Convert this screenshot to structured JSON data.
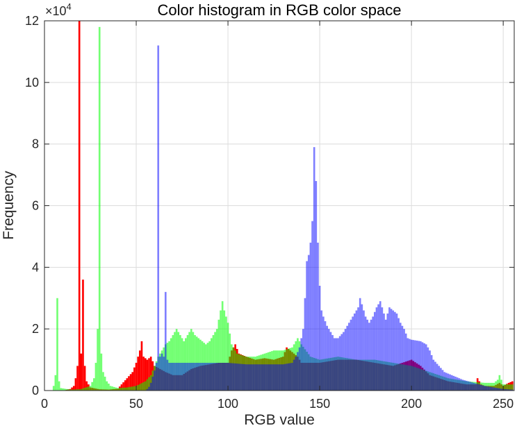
{
  "chart_data": {
    "type": "bar",
    "title": "Color histogram in RGB color space",
    "xlabel": "RGB value",
    "ylabel": "Frequency",
    "xlim": [
      0,
      256
    ],
    "ylim": [
      0,
      120000
    ],
    "y_exponent_label": "×10",
    "y_exponent_power": "4",
    "xticks": [
      0,
      50,
      100,
      150,
      200,
      250
    ],
    "xtick_labels": [
      "0",
      "50",
      "100",
      "150",
      "200",
      "250"
    ],
    "yticks": [
      0,
      20000,
      40000,
      60000,
      80000,
      100000,
      120000
    ],
    "ytick_labels": [
      "0",
      "2",
      "4",
      "6",
      "8",
      "10",
      "12"
    ],
    "grid": true,
    "series": [
      {
        "color": "#ff0000",
        "opacity": 1.0,
        "keypoints": [
          [
            0,
            0
          ],
          [
            10,
            0
          ],
          [
            14,
            500
          ],
          [
            16,
            1500
          ],
          [
            17,
            4000
          ],
          [
            18,
            8000
          ],
          [
            19,
            120000
          ],
          [
            20,
            12000
          ],
          [
            21,
            36000
          ],
          [
            22,
            8000
          ],
          [
            23,
            3000
          ],
          [
            25,
            1000
          ],
          [
            30,
            400
          ],
          [
            35,
            300
          ],
          [
            40,
            600
          ],
          [
            42,
            2000
          ],
          [
            45,
            4000
          ],
          [
            48,
            6000
          ],
          [
            50,
            9000
          ],
          [
            52,
            13000
          ],
          [
            53,
            16000
          ],
          [
            54,
            11000
          ],
          [
            56,
            10000
          ],
          [
            58,
            11000
          ],
          [
            60,
            8000
          ],
          [
            63,
            7000
          ],
          [
            66,
            6000
          ],
          [
            70,
            5000
          ],
          [
            75,
            5000
          ],
          [
            80,
            7000
          ],
          [
            85,
            8000
          ],
          [
            90,
            8500
          ],
          [
            95,
            9000
          ],
          [
            100,
            9000
          ],
          [
            102,
            13000
          ],
          [
            104,
            15000
          ],
          [
            106,
            12000
          ],
          [
            110,
            11000
          ],
          [
            115,
            10000
          ],
          [
            120,
            10500
          ],
          [
            125,
            10000
          ],
          [
            130,
            11000
          ],
          [
            132,
            14000
          ],
          [
            134,
            13000
          ],
          [
            136,
            12000
          ],
          [
            138,
            11000
          ],
          [
            140,
            9000
          ],
          [
            145,
            9000
          ],
          [
            150,
            9000
          ],
          [
            160,
            10000
          ],
          [
            170,
            10000
          ],
          [
            180,
            9000
          ],
          [
            190,
            8000
          ],
          [
            195,
            9000
          ],
          [
            200,
            10000
          ],
          [
            205,
            8000
          ],
          [
            210,
            5000
          ],
          [
            215,
            4000
          ],
          [
            220,
            3000
          ],
          [
            225,
            2500
          ],
          [
            230,
            2000
          ],
          [
            235,
            2000
          ],
          [
            236,
            4000
          ],
          [
            238,
            2000
          ],
          [
            240,
            1500
          ],
          [
            245,
            1500
          ],
          [
            248,
            2500
          ],
          [
            250,
            1500
          ],
          [
            253,
            2500
          ],
          [
            255,
            3000
          ]
        ]
      },
      {
        "color": "#00ff00",
        "opacity": 0.55,
        "keypoints": [
          [
            0,
            0
          ],
          [
            4,
            0
          ],
          [
            5,
            1500
          ],
          [
            6,
            5000
          ],
          [
            7,
            30000
          ],
          [
            8,
            3000
          ],
          [
            9,
            800
          ],
          [
            12,
            500
          ],
          [
            15,
            300
          ],
          [
            20,
            500
          ],
          [
            25,
            1500
          ],
          [
            27,
            4000
          ],
          [
            28,
            9000
          ],
          [
            29,
            20000
          ],
          [
            30,
            118000
          ],
          [
            31,
            12000
          ],
          [
            32,
            6000
          ],
          [
            34,
            3000
          ],
          [
            36,
            1500
          ],
          [
            40,
            800
          ],
          [
            45,
            1000
          ],
          [
            50,
            1500
          ],
          [
            55,
            3000
          ],
          [
            58,
            5000
          ],
          [
            60,
            8000
          ],
          [
            62,
            11000
          ],
          [
            64,
            13000
          ],
          [
            66,
            15000
          ],
          [
            68,
            16000
          ],
          [
            70,
            18000
          ],
          [
            72,
            20000
          ],
          [
            74,
            18000
          ],
          [
            76,
            16000
          ],
          [
            78,
            18000
          ],
          [
            80,
            20000
          ],
          [
            82,
            18000
          ],
          [
            84,
            17000
          ],
          [
            86,
            16000
          ],
          [
            88,
            15000
          ],
          [
            90,
            16000
          ],
          [
            92,
            18000
          ],
          [
            94,
            20000
          ],
          [
            96,
            26000
          ],
          [
            97,
            29000
          ],
          [
            98,
            26000
          ],
          [
            100,
            22000
          ],
          [
            102,
            15000
          ],
          [
            105,
            12000
          ],
          [
            110,
            11000
          ],
          [
            115,
            11000
          ],
          [
            120,
            12000
          ],
          [
            125,
            13000
          ],
          [
            130,
            13000
          ],
          [
            135,
            14000
          ],
          [
            138,
            17000
          ],
          [
            140,
            15000
          ],
          [
            145,
            11000
          ],
          [
            150,
            10000
          ],
          [
            160,
            11000
          ],
          [
            170,
            10000
          ],
          [
            180,
            10000
          ],
          [
            190,
            9000
          ],
          [
            200,
            8000
          ],
          [
            210,
            6000
          ],
          [
            220,
            4000
          ],
          [
            230,
            3000
          ],
          [
            240,
            2500
          ],
          [
            245,
            2500
          ],
          [
            247,
            3500
          ],
          [
            248,
            5000
          ],
          [
            249,
            3500
          ],
          [
            250,
            2000
          ],
          [
            255,
            2000
          ]
        ]
      },
      {
        "color": "#0000ff",
        "opacity": 0.5,
        "keypoints": [
          [
            0,
            0
          ],
          [
            55,
            0
          ],
          [
            56,
            500
          ],
          [
            57,
            1200
          ],
          [
            58,
            2500
          ],
          [
            59,
            4500
          ],
          [
            60,
            6500
          ],
          [
            61,
            9000
          ],
          [
            62,
            112000
          ],
          [
            63,
            11000
          ],
          [
            64,
            12000
          ],
          [
            65,
            11000
          ],
          [
            66,
            32000
          ],
          [
            67,
            10000
          ],
          [
            68,
            9000
          ],
          [
            70,
            9000
          ],
          [
            80,
            9000
          ],
          [
            90,
            9000
          ],
          [
            100,
            9000
          ],
          [
            110,
            8500
          ],
          [
            120,
            8500
          ],
          [
            130,
            8500
          ],
          [
            135,
            9000
          ],
          [
            137,
            11000
          ],
          [
            139,
            14000
          ],
          [
            141,
            20000
          ],
          [
            142,
            30000
          ],
          [
            143,
            42000
          ],
          [
            144,
            44000
          ],
          [
            145,
            48000
          ],
          [
            146,
            55000
          ],
          [
            147,
            79000
          ],
          [
            148,
            68000
          ],
          [
            149,
            48000
          ],
          [
            150,
            34000
          ],
          [
            151,
            26000
          ],
          [
            152,
            24000
          ],
          [
            154,
            21000
          ],
          [
            156,
            19000
          ],
          [
            158,
            17000
          ],
          [
            160,
            17000
          ],
          [
            163,
            19000
          ],
          [
            166,
            22000
          ],
          [
            169,
            25000
          ],
          [
            171,
            27000
          ],
          [
            172,
            30000
          ],
          [
            173,
            28000
          ],
          [
            175,
            24000
          ],
          [
            177,
            22000
          ],
          [
            179,
            24000
          ],
          [
            181,
            27000
          ],
          [
            183,
            29000
          ],
          [
            185,
            25000
          ],
          [
            186,
            23000
          ],
          [
            188,
            27000
          ],
          [
            190,
            26000
          ],
          [
            192,
            25000
          ],
          [
            194,
            22000
          ],
          [
            196,
            20000
          ],
          [
            198,
            17000
          ],
          [
            200,
            16500
          ],
          [
            205,
            16000
          ],
          [
            208,
            15000
          ],
          [
            210,
            13000
          ],
          [
            212,
            10000
          ],
          [
            215,
            8000
          ],
          [
            218,
            6000
          ],
          [
            222,
            5000
          ],
          [
            228,
            3500
          ],
          [
            234,
            2500
          ],
          [
            240,
            1500
          ],
          [
            245,
            1000
          ],
          [
            250,
            500
          ],
          [
            255,
            300
          ]
        ]
      }
    ]
  }
}
